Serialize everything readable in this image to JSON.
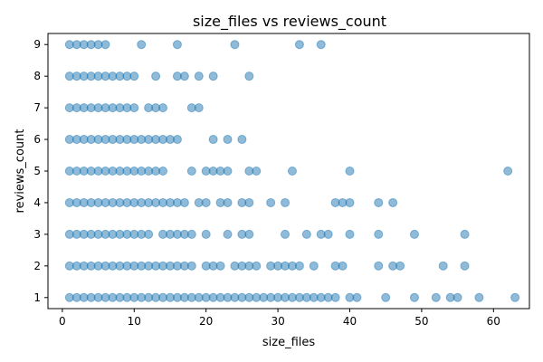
{
  "chart_data": {
    "type": "scatter",
    "title": "size_files vs reviews_count",
    "xlabel": "size_files",
    "ylabel": "reviews_count",
    "xlim": [
      -2,
      65
    ],
    "ylim": [
      0.65,
      9.35
    ],
    "xticks": [
      0,
      10,
      20,
      30,
      40,
      50,
      60
    ],
    "yticks": [
      1,
      2,
      3,
      4,
      5,
      6,
      7,
      8,
      9
    ],
    "grid": false,
    "point_color": "#1f77b4",
    "point_alpha": 0.5,
    "series": [
      {
        "points": [
          [
            1,
            9
          ],
          [
            2,
            9
          ],
          [
            3,
            9
          ],
          [
            4,
            9
          ],
          [
            5,
            9
          ],
          [
            6,
            9
          ],
          [
            11,
            9
          ],
          [
            16,
            9
          ],
          [
            24,
            9
          ],
          [
            33,
            9
          ],
          [
            36,
            9
          ],
          [
            1,
            8
          ],
          [
            2,
            8
          ],
          [
            3,
            8
          ],
          [
            4,
            8
          ],
          [
            5,
            8
          ],
          [
            6,
            8
          ],
          [
            7,
            8
          ],
          [
            8,
            8
          ],
          [
            9,
            8
          ],
          [
            10,
            8
          ],
          [
            13,
            8
          ],
          [
            16,
            8
          ],
          [
            17,
            8
          ],
          [
            19,
            8
          ],
          [
            21,
            8
          ],
          [
            26,
            8
          ],
          [
            1,
            7
          ],
          [
            2,
            7
          ],
          [
            3,
            7
          ],
          [
            4,
            7
          ],
          [
            5,
            7
          ],
          [
            6,
            7
          ],
          [
            7,
            7
          ],
          [
            8,
            7
          ],
          [
            9,
            7
          ],
          [
            10,
            7
          ],
          [
            12,
            7
          ],
          [
            13,
            7
          ],
          [
            14,
            7
          ],
          [
            18,
            7
          ],
          [
            19,
            7
          ],
          [
            1,
            6
          ],
          [
            2,
            6
          ],
          [
            3,
            6
          ],
          [
            4,
            6
          ],
          [
            5,
            6
          ],
          [
            6,
            6
          ],
          [
            7,
            6
          ],
          [
            8,
            6
          ],
          [
            9,
            6
          ],
          [
            10,
            6
          ],
          [
            11,
            6
          ],
          [
            12,
            6
          ],
          [
            13,
            6
          ],
          [
            14,
            6
          ],
          [
            15,
            6
          ],
          [
            16,
            6
          ],
          [
            21,
            6
          ],
          [
            23,
            6
          ],
          [
            25,
            6
          ],
          [
            1,
            5
          ],
          [
            2,
            5
          ],
          [
            3,
            5
          ],
          [
            4,
            5
          ],
          [
            5,
            5
          ],
          [
            6,
            5
          ],
          [
            7,
            5
          ],
          [
            8,
            5
          ],
          [
            9,
            5
          ],
          [
            10,
            5
          ],
          [
            11,
            5
          ],
          [
            12,
            5
          ],
          [
            13,
            5
          ],
          [
            14,
            5
          ],
          [
            18,
            5
          ],
          [
            20,
            5
          ],
          [
            21,
            5
          ],
          [
            22,
            5
          ],
          [
            23,
            5
          ],
          [
            26,
            5
          ],
          [
            27,
            5
          ],
          [
            32,
            5
          ],
          [
            40,
            5
          ],
          [
            62,
            5
          ],
          [
            1,
            4
          ],
          [
            2,
            4
          ],
          [
            3,
            4
          ],
          [
            4,
            4
          ],
          [
            5,
            4
          ],
          [
            6,
            4
          ],
          [
            7,
            4
          ],
          [
            8,
            4
          ],
          [
            9,
            4
          ],
          [
            10,
            4
          ],
          [
            11,
            4
          ],
          [
            12,
            4
          ],
          [
            13,
            4
          ],
          [
            14,
            4
          ],
          [
            15,
            4
          ],
          [
            16,
            4
          ],
          [
            17,
            4
          ],
          [
            19,
            4
          ],
          [
            20,
            4
          ],
          [
            22,
            4
          ],
          [
            23,
            4
          ],
          [
            25,
            4
          ],
          [
            26,
            4
          ],
          [
            29,
            4
          ],
          [
            31,
            4
          ],
          [
            38,
            4
          ],
          [
            39,
            4
          ],
          [
            40,
            4
          ],
          [
            44,
            4
          ],
          [
            46,
            4
          ],
          [
            1,
            3
          ],
          [
            2,
            3
          ],
          [
            3,
            3
          ],
          [
            4,
            3
          ],
          [
            5,
            3
          ],
          [
            6,
            3
          ],
          [
            7,
            3
          ],
          [
            8,
            3
          ],
          [
            9,
            3
          ],
          [
            10,
            3
          ],
          [
            11,
            3
          ],
          [
            12,
            3
          ],
          [
            14,
            3
          ],
          [
            15,
            3
          ],
          [
            16,
            3
          ],
          [
            17,
            3
          ],
          [
            18,
            3
          ],
          [
            20,
            3
          ],
          [
            23,
            3
          ],
          [
            25,
            3
          ],
          [
            26,
            3
          ],
          [
            31,
            3
          ],
          [
            34,
            3
          ],
          [
            36,
            3
          ],
          [
            37,
            3
          ],
          [
            40,
            3
          ],
          [
            44,
            3
          ],
          [
            49,
            3
          ],
          [
            56,
            3
          ],
          [
            1,
            2
          ],
          [
            2,
            2
          ],
          [
            3,
            2
          ],
          [
            4,
            2
          ],
          [
            5,
            2
          ],
          [
            6,
            2
          ],
          [
            7,
            2
          ],
          [
            8,
            2
          ],
          [
            9,
            2
          ],
          [
            10,
            2
          ],
          [
            11,
            2
          ],
          [
            12,
            2
          ],
          [
            13,
            2
          ],
          [
            14,
            2
          ],
          [
            15,
            2
          ],
          [
            16,
            2
          ],
          [
            17,
            2
          ],
          [
            18,
            2
          ],
          [
            20,
            2
          ],
          [
            21,
            2
          ],
          [
            22,
            2
          ],
          [
            24,
            2
          ],
          [
            25,
            2
          ],
          [
            26,
            2
          ],
          [
            27,
            2
          ],
          [
            29,
            2
          ],
          [
            30,
            2
          ],
          [
            31,
            2
          ],
          [
            32,
            2
          ],
          [
            33,
            2
          ],
          [
            35,
            2
          ],
          [
            38,
            2
          ],
          [
            39,
            2
          ],
          [
            44,
            2
          ],
          [
            46,
            2
          ],
          [
            47,
            2
          ],
          [
            53,
            2
          ],
          [
            56,
            2
          ],
          [
            1,
            1
          ],
          [
            2,
            1
          ],
          [
            3,
            1
          ],
          [
            4,
            1
          ],
          [
            5,
            1
          ],
          [
            6,
            1
          ],
          [
            7,
            1
          ],
          [
            8,
            1
          ],
          [
            9,
            1
          ],
          [
            10,
            1
          ],
          [
            11,
            1
          ],
          [
            12,
            1
          ],
          [
            13,
            1
          ],
          [
            14,
            1
          ],
          [
            15,
            1
          ],
          [
            16,
            1
          ],
          [
            17,
            1
          ],
          [
            18,
            1
          ],
          [
            19,
            1
          ],
          [
            20,
            1
          ],
          [
            21,
            1
          ],
          [
            22,
            1
          ],
          [
            23,
            1
          ],
          [
            24,
            1
          ],
          [
            25,
            1
          ],
          [
            26,
            1
          ],
          [
            27,
            1
          ],
          [
            28,
            1
          ],
          [
            29,
            1
          ],
          [
            30,
            1
          ],
          [
            31,
            1
          ],
          [
            32,
            1
          ],
          [
            33,
            1
          ],
          [
            34,
            1
          ],
          [
            35,
            1
          ],
          [
            36,
            1
          ],
          [
            37,
            1
          ],
          [
            38,
            1
          ],
          [
            40,
            1
          ],
          [
            41,
            1
          ],
          [
            45,
            1
          ],
          [
            49,
            1
          ],
          [
            52,
            1
          ],
          [
            54,
            1
          ],
          [
            55,
            1
          ],
          [
            58,
            1
          ],
          [
            63,
            1
          ]
        ]
      }
    ]
  }
}
